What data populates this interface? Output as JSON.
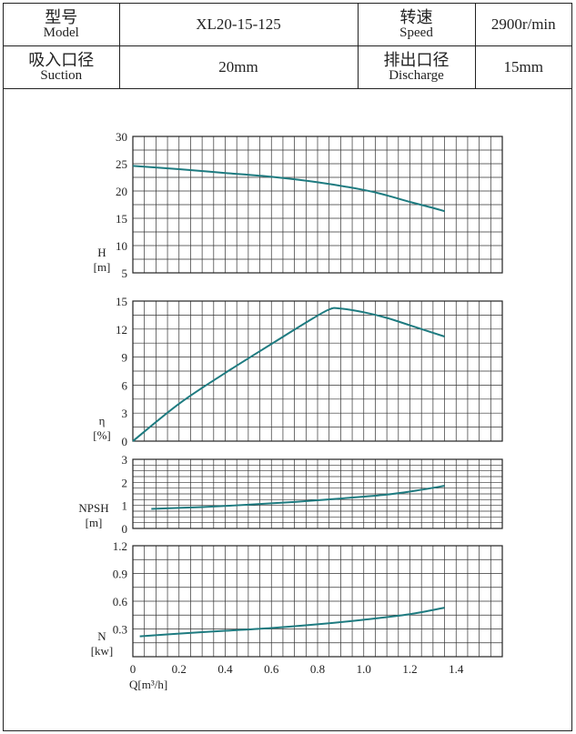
{
  "spec": {
    "model_cn": "型号",
    "model_en": "Model",
    "model_value": "XL20-15-125",
    "speed_cn": "转速",
    "speed_en": "Speed",
    "speed_value": "2900r/min",
    "suction_cn": "吸入口径",
    "suction_en": "Suction",
    "suction_value": "20mm",
    "discharge_cn": "排出口径",
    "discharge_en": "Discharge",
    "discharge_value": "15mm"
  },
  "chart_data": {
    "type": "line",
    "xlabel": "Q[m³/h]",
    "xlim": [
      0,
      1.6
    ],
    "xticks": [
      0,
      0.2,
      0.4,
      0.6,
      0.8,
      1.0,
      1.2,
      1.4
    ],
    "xtick_labels": [
      "0",
      "0.2",
      "0.4",
      "0.6",
      "0.8",
      "1.0",
      "1.2",
      "1.4"
    ],
    "grid": true,
    "color": "#1e7b80",
    "panels": [
      {
        "ylabel": [
          "H",
          "[m]"
        ],
        "ylim": [
          5,
          30
        ],
        "yticks": [
          5,
          10,
          15,
          20,
          25,
          30
        ],
        "ytick_labels": [
          "5",
          "10",
          "15",
          "20",
          "25",
          "30"
        ],
        "x": [
          0,
          0.2,
          0.4,
          0.6,
          0.8,
          1.0,
          1.1,
          1.2,
          1.3,
          1.35
        ],
        "y": [
          24.6,
          24.0,
          23.3,
          22.6,
          21.6,
          20.2,
          19.2,
          18.0,
          16.9,
          16.3
        ]
      },
      {
        "ylabel": [
          "η",
          "[%]"
        ],
        "ylim": [
          0,
          15
        ],
        "yticks": [
          0,
          3,
          6,
          9,
          12,
          15
        ],
        "ytick_labels": [
          "0",
          "3",
          "6",
          "9",
          "12",
          "15"
        ],
        "x": [
          0,
          0.2,
          0.4,
          0.6,
          0.75,
          0.85,
          0.9,
          1.0,
          1.1,
          1.2,
          1.3,
          1.35
        ],
        "y": [
          0,
          4.0,
          7.3,
          10.4,
          12.7,
          14.1,
          14.2,
          13.8,
          13.2,
          12.4,
          11.6,
          11.2
        ]
      },
      {
        "ylabel": [
          "NPSH",
          "[m]"
        ],
        "ylim": [
          0,
          3
        ],
        "yticks": [
          0,
          1,
          2,
          3
        ],
        "ytick_labels": [
          "0",
          "1",
          "2",
          "3"
        ],
        "x": [
          0.08,
          0.3,
          0.5,
          0.7,
          0.9,
          1.1,
          1.25,
          1.35
        ],
        "y": [
          0.85,
          0.93,
          1.03,
          1.15,
          1.3,
          1.47,
          1.68,
          1.85
        ]
      },
      {
        "ylabel": [
          "N",
          "[kw]"
        ],
        "ylim": [
          0,
          1.2
        ],
        "yticks": [
          0.3,
          0.6,
          0.9,
          1.2
        ],
        "ytick_labels": [
          "0.3",
          "0.6",
          "0.9",
          "1.2"
        ],
        "x": [
          0.03,
          0.2,
          0.4,
          0.6,
          0.8,
          1.0,
          1.2,
          1.35
        ],
        "y": [
          0.22,
          0.25,
          0.28,
          0.31,
          0.35,
          0.4,
          0.46,
          0.53
        ]
      }
    ]
  }
}
